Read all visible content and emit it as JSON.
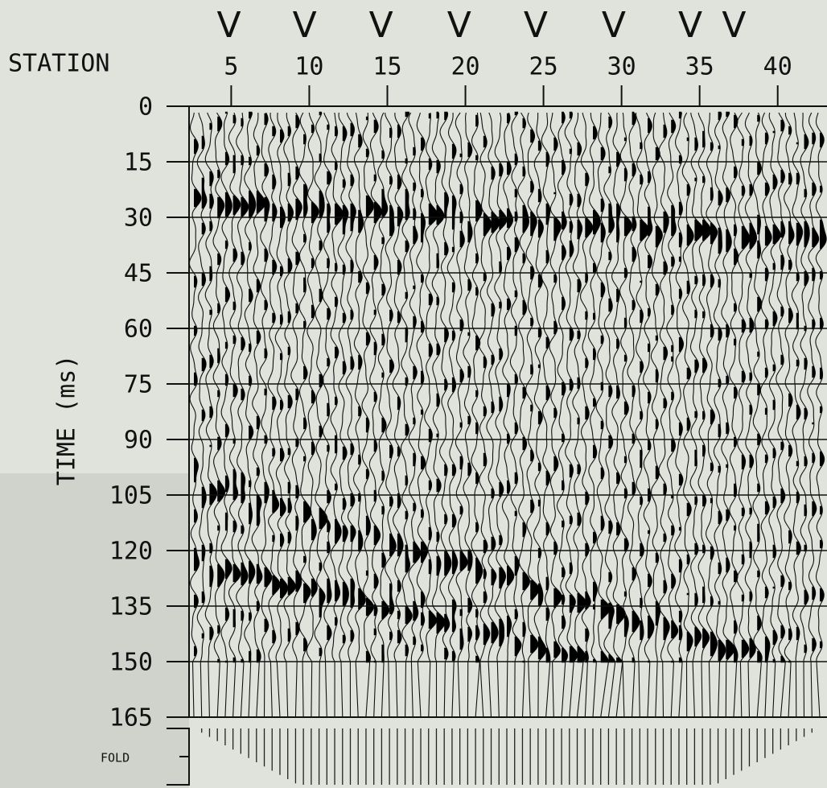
{
  "chart_data": {
    "type": "seismic",
    "x_label": "STATION",
    "y_label": "TIME (ms)",
    "xlim": [
      2.3,
      42.9
    ],
    "xticks": [
      5,
      10,
      15,
      20,
      25,
      30,
      35,
      40
    ],
    "ylim": [
      0,
      165
    ],
    "yticks": [
      0,
      15,
      30,
      45,
      60,
      75,
      90,
      105,
      120,
      135,
      150,
      165
    ],
    "grid": true,
    "markers": [
      {
        "label": "V",
        "x": 4.85
      },
      {
        "label": "V",
        "x": 9.7
      },
      {
        "label": "V",
        "x": 14.6
      },
      {
        "label": "V",
        "x": 19.6
      },
      {
        "label": "V",
        "x": 24.5
      },
      {
        "label": "V",
        "x": 29.5
      },
      {
        "label": "V",
        "x": 34.4
      },
      {
        "label": "V",
        "x": 37.2
      }
    ],
    "fold_label": "FOLD"
  }
}
